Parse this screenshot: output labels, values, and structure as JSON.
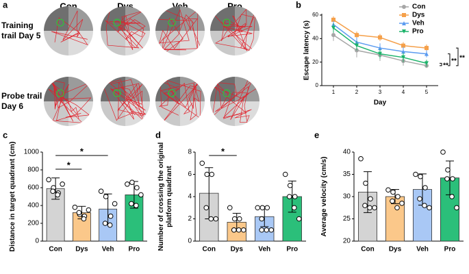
{
  "panel_a": {
    "label": "a",
    "groups": [
      "Con",
      "Dys",
      "Veh",
      "Pro"
    ],
    "rows": [
      [
        "Training",
        "trail Day 5"
      ],
      [
        "Probe trail",
        "Day 6"
      ]
    ]
  },
  "chart_data": [
    {
      "type": "line",
      "panel": "b",
      "xlabel": "Day",
      "ylabel": "Escape latency (s)",
      "x": [
        1,
        2,
        3,
        4,
        5
      ],
      "xlim": [
        0.5,
        5.5
      ],
      "xticks": [
        1,
        2,
        3,
        4,
        5
      ],
      "ylim": [
        0,
        60
      ],
      "yticks": [
        0,
        20,
        40,
        60
      ],
      "series": [
        {
          "name": "Con",
          "color": "#a6a6a6",
          "marker": "circle",
          "values": [
            43,
            30,
            26,
            21,
            17
          ],
          "errors": [
            5,
            6,
            5,
            4,
            2
          ]
        },
        {
          "name": "Dys",
          "color": "#f5a04a",
          "marker": "square",
          "values": [
            56,
            43,
            41,
            34,
            32
          ],
          "errors": [
            3,
            3,
            3,
            3,
            3
          ]
        },
        {
          "name": "Veh",
          "color": "#5b9bf0",
          "marker": "triangle",
          "values": [
            52,
            37,
            32,
            29,
            27
          ],
          "errors": [
            3,
            4,
            4,
            4,
            3
          ]
        },
        {
          "name": "Pro",
          "color": "#1db36b",
          "marker": "down",
          "values": [
            49,
            34,
            27,
            24,
            19
          ],
          "errors": [
            4,
            4,
            4,
            4,
            3
          ]
        }
      ],
      "annotations": [
        "**",
        "**",
        "**"
      ]
    },
    {
      "type": "bar",
      "panel": "c",
      "ylabel": [
        "Distance in target quadrant (cm)"
      ],
      "categories": [
        "Con",
        "Dys",
        "Veh",
        "Pro"
      ],
      "values": [
        590,
        320,
        360,
        520
      ],
      "errors": [
        120,
        70,
        170,
        150
      ],
      "colors": [
        "#d4d4d4",
        "#fbc88a",
        "#a9c8f5",
        "#2bbf7a"
      ],
      "points": [
        [
          690,
          600,
          540,
          560,
          520,
          640
        ],
        [
          380,
          300,
          280,
          320,
          250,
          350
        ],
        [
          560,
          500,
          280,
          200,
          180,
          420
        ],
        [
          640,
          660,
          600,
          420,
          400,
          520
        ]
      ],
      "ylim": [
        0,
        1000
      ],
      "yticks": [
        0,
        200,
        400,
        600,
        800,
        1000
      ],
      "annotations": [
        "*",
        "*"
      ]
    },
    {
      "type": "bar",
      "panel": "d",
      "ylabel": [
        "Number of crossing the original",
        "platform quadrant"
      ],
      "categories": [
        "Con",
        "Dys",
        "Veh",
        "Pro"
      ],
      "values": [
        4.3,
        1.7,
        2.2,
        4.0
      ],
      "errors": [
        2.3,
        0.8,
        0.9,
        1.4
      ],
      "colors": [
        "#d4d4d4",
        "#fbc88a",
        "#a9c8f5",
        "#2bbf7a"
      ],
      "points": [
        [
          7,
          6,
          6,
          3,
          2,
          2
        ],
        [
          3,
          2,
          2,
          1,
          1,
          1,
          1
        ],
        [
          3,
          3,
          3,
          2,
          1,
          1,
          1
        ],
        [
          6,
          5,
          4,
          4,
          3,
          2
        ]
      ],
      "ylim": [
        0,
        8
      ],
      "yticks": [
        0,
        2,
        4,
        6,
        8
      ],
      "annotations": [
        "*"
      ]
    },
    {
      "type": "bar",
      "panel": "e",
      "ylabel": [
        "Average velocity (cm/s)"
      ],
      "categories": [
        "Con",
        "Dys",
        "Veh",
        "Pro"
      ],
      "values": [
        31,
        30,
        31.6,
        34.2
      ],
      "errors": [
        4.6,
        1.6,
        3.5,
        3.8
      ],
      "colors": [
        "#d4d4d4",
        "#fbc88a",
        "#a9c8f5",
        "#2bbf7a"
      ],
      "points": [
        [
          38.5,
          33,
          29.5,
          28,
          27.5,
          27.5
        ],
        [
          31.5,
          31,
          30,
          29,
          27.5,
          28.5
        ],
        [
          35,
          34.5,
          32,
          29.5,
          28,
          27.5
        ],
        [
          40,
          36,
          34,
          34,
          30,
          27.5
        ]
      ],
      "ylim": [
        20,
        40
      ],
      "yticks": [
        20,
        25,
        30,
        35,
        40
      ],
      "annotations": []
    }
  ]
}
